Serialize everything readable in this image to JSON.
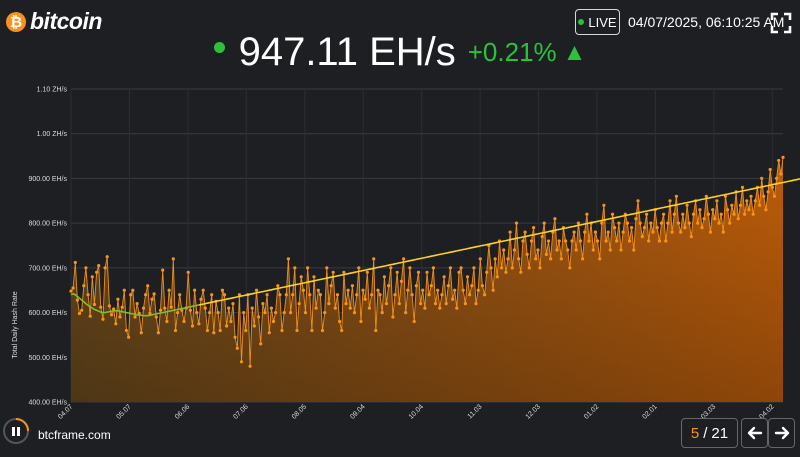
{
  "brand": {
    "logo_symbol": "₿",
    "logo_text": "bitcoin",
    "color": "#f7931a"
  },
  "header": {
    "live_label": "LIVE",
    "datetime": "04/07/2025, 06:10:25 AM",
    "value": "947.11 EH/s",
    "change": "+0.21%",
    "change_arrow": "▲",
    "up_color": "#2bc23a"
  },
  "footer": {
    "site": "btcframe.com",
    "page_current": "5",
    "page_separator": "/",
    "page_total": "21"
  },
  "icons": {
    "pause": "pause-icon",
    "fullscreen": "fullscreen-icon",
    "prev": "arrow-left-icon",
    "next": "arrow-right-icon"
  },
  "chart_data": {
    "type": "line",
    "ylabel": "Total Daily Hash Rate",
    "ylim": [
      400,
      1100
    ],
    "ytick_labels": [
      "400.00 EH/s",
      "500.00 EH/s",
      "600.00 EH/s",
      "700.00 EH/s",
      "800.00 EH/s",
      "900.00 EH/s",
      "1.00 ZH/s",
      "1.10 ZH/s"
    ],
    "ytick_values": [
      400,
      500,
      600,
      700,
      800,
      900,
      1000,
      1100
    ],
    "xtick_labels": [
      "04.07",
      "05.07",
      "06.06",
      "07.06",
      "08.05",
      "09.04",
      "10.04",
      "11.03",
      "12.03",
      "01.02",
      "02.01",
      "03.03",
      "04.02"
    ],
    "grid": true,
    "daily_color": "#f7931a",
    "ma_color": "#ffd21f",
    "ma_early_color": "#7fbf2a",
    "series": [
      {
        "name": "",
        "values": [
          648,
          655,
          712,
          628,
          598,
          605,
          660,
          700,
          640,
          592,
          680,
          618,
          690,
          705,
          612,
          585,
          700,
          725,
          615,
          595,
          608,
          575,
          630,
          590,
          612,
          650,
          560,
          545,
          640,
          650,
          590,
          620,
          598,
          555,
          610,
          640,
          660,
          598,
          630,
          642,
          590,
          555,
          605,
          695,
          610,
          580,
          650,
          612,
          720,
          560,
          600,
          640,
          605,
          580,
          610,
          690,
          605,
          570,
          650,
          600,
          575,
          630,
          650,
          610,
          560,
          600,
          640,
          555,
          625,
          600,
          560,
          650,
          640,
          570,
          610,
          580,
          620,
          545,
          520,
          640,
          490,
          600,
          560,
          640,
          480,
          610,
          570,
          650,
          590,
          530,
          620,
          600,
          640,
          555,
          610,
          580,
          600,
          660,
          640,
          560,
          600,
          640,
          720,
          600,
          640,
          700,
          560,
          620,
          680,
          650,
          600,
          700,
          640,
          560,
          680,
          610,
          650,
          640,
          560,
          600,
          700,
          620,
          660,
          690,
          610,
          640,
          580,
          560,
          690,
          620,
          650,
          610,
          660,
          600,
          640,
          700,
          580,
          650,
          630,
          690,
          610,
          640,
          720,
          560,
          650,
          640,
          600,
          680,
          620,
          660,
          700,
          590,
          640,
          690,
          620,
          670,
          720,
          600,
          650,
          700,
          640,
          580,
          660,
          690,
          620,
          650,
          610,
          690,
          640,
          660,
          700,
          620,
          650,
          610,
          640,
          680,
          620,
          660,
          700,
          630,
          650,
          610,
          690,
          700,
          650,
          620,
          680,
          640,
          660,
          700,
          620,
          650,
          720,
          660,
          640,
          690,
          750,
          700,
          650,
          720,
          680,
          760,
          700,
          740,
          690,
          720,
          780,
          700,
          740,
          800,
          720,
          690,
          760,
          780,
          730,
          700,
          760,
          790,
          720,
          740,
          700,
          770,
          800,
          730,
          760,
          720,
          780,
          810,
          740,
          760,
          720,
          790,
          760,
          740,
          700,
          760,
          780,
          740,
          800,
          760,
          720,
          780,
          820,
          760,
          800,
          740,
          780,
          760,
          720,
          800,
          840,
          760,
          780,
          740,
          820,
          790,
          760,
          800,
          740,
          780,
          820,
          800,
          760,
          790,
          740,
          810,
          850,
          800,
          770,
          790,
          820,
          760,
          800,
          780,
          830,
          790,
          760,
          800,
          820,
          760,
          800,
          850,
          780,
          820,
          860,
          800,
          780,
          820,
          790,
          840,
          800,
          770,
          820,
          850,
          800,
          830,
          790,
          810,
          860,
          820,
          780,
          830,
          810,
          850,
          800,
          820,
          780,
          860,
          830,
          800,
          840,
          820,
          870,
          810,
          840,
          880,
          820,
          850,
          830,
          860,
          820,
          850,
          880,
          840,
          900,
          860,
          830,
          870,
          920,
          880,
          860,
          900,
          940,
          910,
          947
        ]
      },
      {
        "name": "",
        "values": [
          640,
          642,
          640,
          636,
          632,
          628,
          624,
          620,
          616,
          613,
          610,
          607,
          605,
          603,
          601,
          600,
          600,
          601,
          602,
          603,
          604,
          604,
          604,
          603,
          602,
          601,
          600,
          599,
          598,
          597,
          596,
          595,
          594,
          594,
          593,
          593,
          593,
          594,
          595,
          596,
          597,
          598,
          599,
          600,
          601,
          602,
          603,
          604,
          605,
          606,
          607,
          608,
          609,
          610,
          611,
          612,
          613,
          614,
          615,
          616,
          617,
          618,
          619,
          620,
          621,
          622,
          623,
          624,
          625,
          626,
          627,
          628,
          629,
          630,
          631,
          632,
          633,
          634,
          635,
          636,
          637,
          638,
          639,
          640,
          641,
          642,
          643,
          644,
          645,
          646,
          647,
          648,
          649,
          650,
          651,
          652,
          653,
          654,
          655,
          656,
          657,
          658,
          659,
          660,
          661,
          662,
          663,
          664,
          665,
          666,
          667,
          668,
          669,
          670,
          671,
          672,
          673,
          674,
          675,
          676,
          677,
          678,
          679,
          680,
          681,
          682,
          683,
          684,
          685,
          686,
          687,
          688,
          689,
          690,
          691,
          692,
          693,
          694,
          695,
          696,
          697,
          698,
          699,
          700,
          701,
          702,
          703,
          704,
          705,
          706,
          707,
          708,
          709,
          710,
          711,
          712,
          713,
          714,
          715,
          716,
          717,
          718,
          719,
          720,
          721,
          722,
          723,
          724,
          725,
          726,
          727,
          728,
          729,
          730,
          731,
          732,
          733,
          734,
          735,
          736,
          737,
          738,
          739,
          740,
          741,
          742,
          743,
          744,
          745,
          746,
          747,
          748,
          749,
          750,
          751,
          752,
          753,
          754,
          755,
          756,
          757,
          758,
          759,
          760,
          761,
          762,
          763,
          764,
          765,
          766,
          767,
          768,
          769,
          770,
          771,
          772,
          773,
          774,
          775,
          776,
          777,
          778,
          779,
          780,
          781,
          782,
          783,
          784,
          785,
          786,
          787,
          788,
          789,
          790,
          791,
          792,
          793,
          794,
          795,
          796,
          797,
          798,
          799,
          800,
          801,
          802,
          803,
          804,
          805,
          806,
          807,
          808,
          809,
          810,
          811,
          812,
          813,
          814,
          815,
          816,
          817,
          818,
          819,
          820,
          821,
          822,
          823,
          824,
          825,
          826,
          827,
          828,
          829,
          830,
          831,
          832,
          833,
          834,
          835,
          836,
          837,
          838,
          839,
          840,
          841,
          842,
          843,
          844,
          845,
          846,
          847,
          848,
          849,
          850,
          851,
          852,
          853,
          854,
          855,
          856,
          857,
          858,
          859,
          860,
          861,
          862,
          863,
          864,
          865,
          866,
          867,
          868,
          869,
          870,
          871,
          872,
          873,
          874,
          875,
          876,
          877,
          878,
          879,
          880,
          881,
          882,
          883,
          884,
          885,
          886,
          887,
          888,
          889,
          890,
          891,
          892,
          893,
          894,
          895,
          896,
          897,
          898,
          899,
          900
        ]
      }
    ]
  }
}
